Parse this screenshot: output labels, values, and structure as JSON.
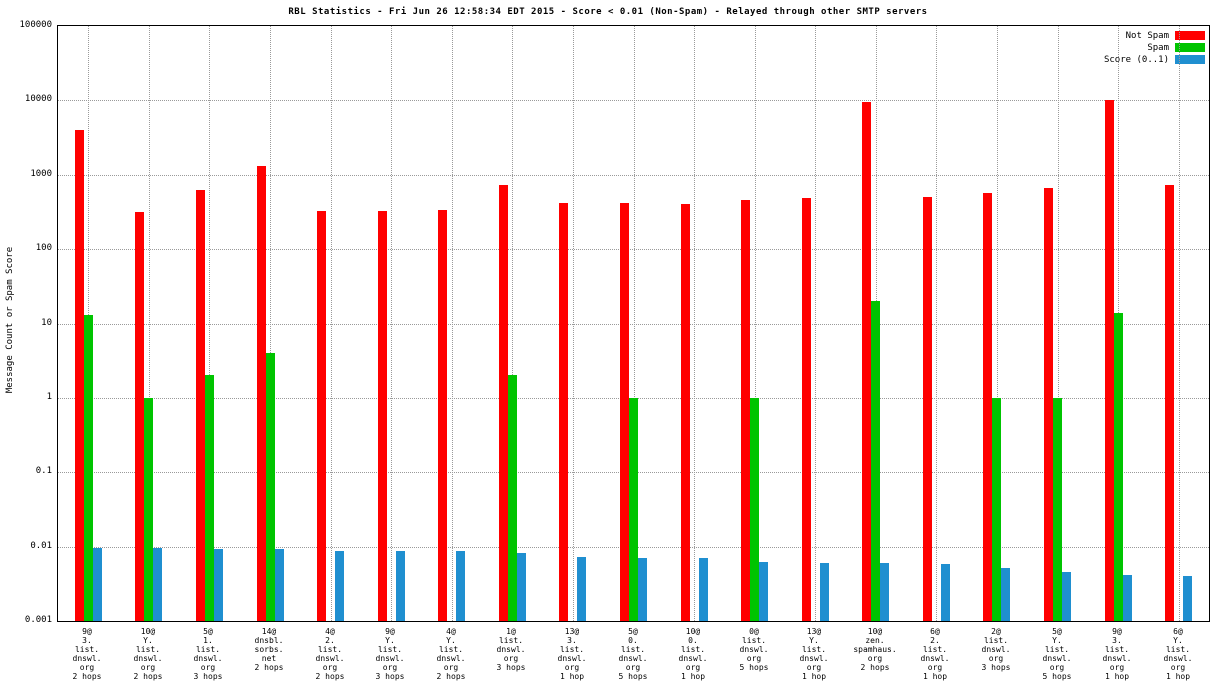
{
  "title": "RBL Statistics - Fri Jun 26 12:58:34 EDT 2015 - Score < 0.01 (Non-Spam) - Relayed through other SMTP servers",
  "ylabel": "Message Count or Spam Score",
  "chart_data": {
    "type": "bar",
    "scale": "log",
    "title": "RBL Statistics - Fri Jun 26 12:58:34 EDT 2015 - Score < 0.01 (Non-Spam) - Relayed through other SMTP servers",
    "xlabel": "",
    "ylabel": "Message Count or Spam Score",
    "ylim": [
      0.001,
      100000
    ],
    "yticks": [
      "100000",
      "10000",
      "1000",
      "100",
      "10",
      "1",
      "0.1",
      "0.01",
      "0.001"
    ],
    "grid": "dotted",
    "legend_position": "top-right",
    "categories": [
      [
        "9@",
        "3.",
        "list.",
        "dnswl.",
        "org",
        "2 hops"
      ],
      [
        "10@",
        "Y.",
        "list.",
        "dnswl.",
        "org",
        "2 hops"
      ],
      [
        "5@",
        "1.",
        "list.",
        "dnswl.",
        "org",
        "3 hops"
      ],
      [
        "14@",
        "dnsbl.",
        "sorbs.",
        "net",
        "2 hops"
      ],
      [
        "4@",
        "2.",
        "list.",
        "dnswl.",
        "org",
        "2 hops"
      ],
      [
        "9@",
        "Y.",
        "list.",
        "dnswl.",
        "org",
        "3 hops"
      ],
      [
        "4@",
        "Y.",
        "list.",
        "dnswl.",
        "org",
        "2 hops"
      ],
      [
        "1@",
        "list.",
        "dnswl.",
        "org",
        "3 hops"
      ],
      [
        "13@",
        "3.",
        "list.",
        "dnswl.",
        "org",
        "1 hop"
      ],
      [
        "5@",
        "0.",
        "list.",
        "dnswl.",
        "org",
        "5 hops"
      ],
      [
        "10@",
        "0.",
        "list.",
        "dnswl.",
        "org",
        "1 hop"
      ],
      [
        "0@",
        "list.",
        "dnswl.",
        "org",
        "5 hops"
      ],
      [
        "13@",
        "Y.",
        "list.",
        "dnswl.",
        "org",
        "1 hop"
      ],
      [
        "10@",
        "zen.",
        "spamhaus.",
        "org",
        "2 hops"
      ],
      [
        "6@",
        "2.",
        "list.",
        "dnswl.",
        "org",
        "1 hop"
      ],
      [
        "2@",
        "list.",
        "dnswl.",
        "org",
        "3 hops"
      ],
      [
        "5@",
        "Y.",
        "list.",
        "dnswl.",
        "org",
        "5 hops"
      ],
      [
        "9@",
        "3.",
        "list.",
        "dnswl.",
        "org",
        "1 hop"
      ],
      [
        "6@",
        "Y.",
        "list.",
        "dnswl.",
        "org",
        "1 hop"
      ]
    ],
    "series": [
      {
        "name": "Not Spam",
        "color": "#ff0000",
        "values": [
          4000,
          320,
          620,
          1300,
          330,
          330,
          340,
          730,
          420,
          420,
          410,
          460,
          480,
          9500,
          500,
          560,
          670,
          10000,
          730
        ]
      },
      {
        "name": "Spam",
        "color": "#00c400",
        "values": [
          13,
          1,
          2,
          4,
          null,
          null,
          null,
          2,
          null,
          1,
          null,
          1,
          null,
          20,
          null,
          1,
          1,
          14,
          null
        ]
      },
      {
        "name": "Score (0..1)",
        "color": "#1f8fd0",
        "values": [
          0.0095,
          0.0095,
          0.0093,
          0.0092,
          0.0088,
          0.0088,
          0.0086,
          0.0082,
          0.0072,
          0.0071,
          0.007,
          0.0062,
          0.006,
          0.006,
          0.0058,
          0.0052,
          0.0045,
          0.0041,
          0.004
        ]
      }
    ]
  }
}
